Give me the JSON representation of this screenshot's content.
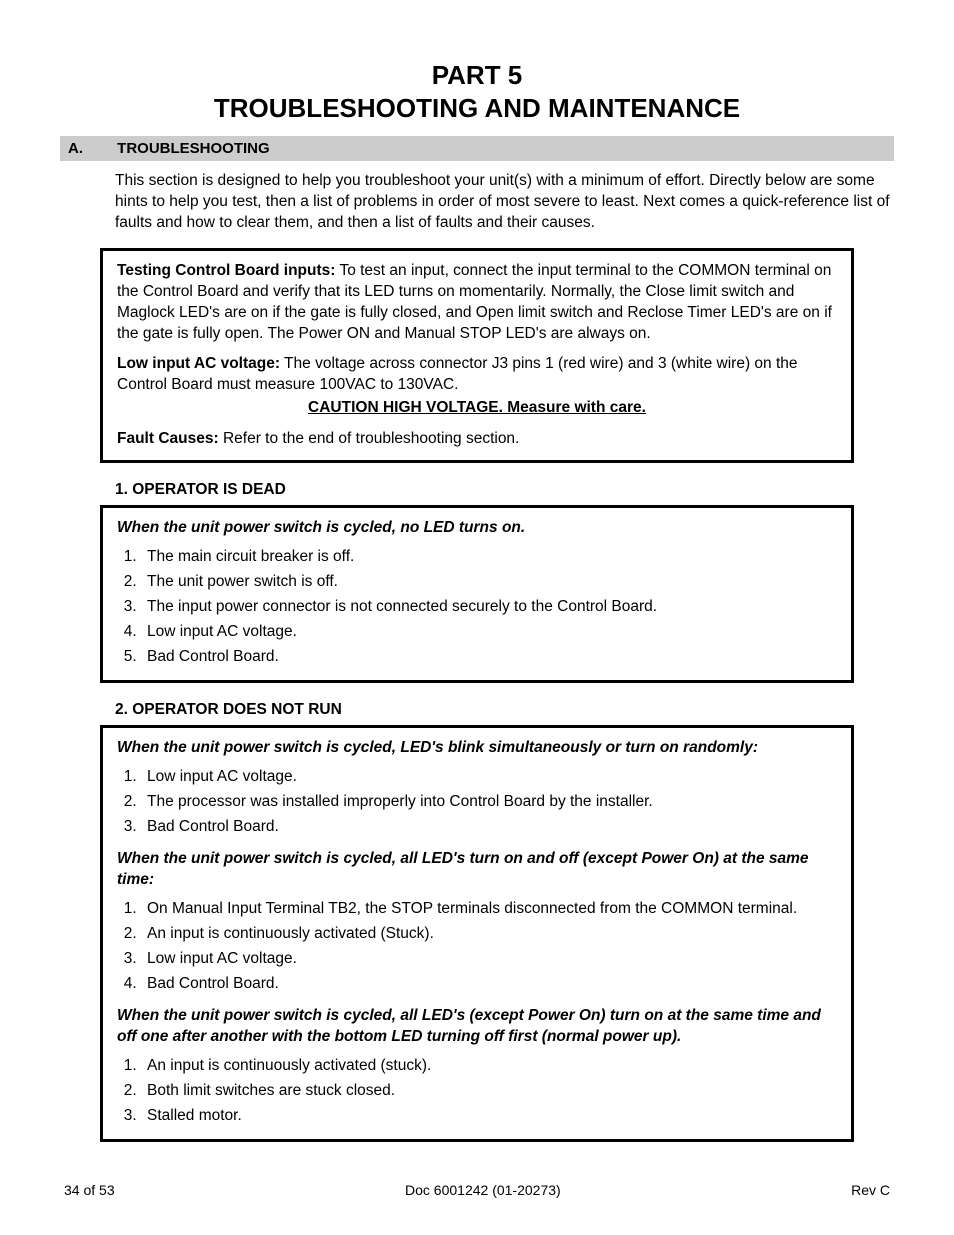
{
  "title_line1": "PART 5",
  "title_line2": "TROUBLESHOOTING AND MAINTENANCE",
  "section_letter": "A.",
  "section_title": "TROUBLESHOOTING",
  "intro": "This section is designed to help you troubleshoot your unit(s) with a minimum of effort.  Directly below are some hints to help you test, then a list of problems in order of most severe to least.  Next comes a quick-reference list of faults and how to clear them, and then a list of faults and their causes.",
  "hints": {
    "testing_label": "Testing Control Board inputs:",
    "testing_text": "  To test an input, connect the input terminal to the COMMON terminal on the Control Board and verify that its LED turns on momentarily.  Normally, the Close limit switch and Maglock LED's are on if the gate is fully closed, and Open limit switch and Reclose Timer LED's are on if the gate is fully open.  The Power ON and Manual STOP LED's are always on.",
    "lowac_label": "Low input AC voltage:",
    "lowac_text": "  The voltage across connector J3 pins 1 (red wire) and 3 (white wire) on the Control Board must measure 100VAC to 130VAC.",
    "caution": "CAUTION HIGH VOLTAGE.  Measure with care.",
    "fault_label": "Fault Causes:",
    "fault_text": "  Refer to the end of troubleshooting section."
  },
  "problems": [
    {
      "heading": "1.  OPERATOR IS DEAD",
      "groups": [
        {
          "symptom": "When the unit power switch is cycled, no LED turns on.",
          "causes": [
            "The main circuit breaker is off.",
            "The unit power switch is off.",
            "The input power connector is not connected securely to the Control Board.",
            "Low input AC voltage.",
            "Bad Control Board."
          ]
        }
      ]
    },
    {
      "heading": "2.  OPERATOR DOES NOT RUN",
      "groups": [
        {
          "symptom": "When the unit power switch is cycled,  LED's blink simultaneously or turn on randomly:",
          "causes": [
            "Low input AC voltage.",
            "The processor was installed improperly into Control Board by the installer.",
            "Bad Control Board."
          ]
        },
        {
          "symptom": "When the unit power switch is cycled, all LED's turn on and off  (except Power On) at the same time:",
          "causes": [
            "On Manual Input Terminal TB2, the STOP terminals disconnected from the COMMON terminal.",
            "An input is continuously activated (Stuck).",
            "Low input AC voltage.",
            "Bad Control Board."
          ]
        },
        {
          "symptom": "When the unit power switch is cycled, all LED's (except Power On) turn on at the same time and off one after another with the bottom LED turning off first (normal power up).",
          "causes": [
            "An input is continuously activated (stuck).",
            "Both limit switches are stuck closed.",
            "Stalled motor."
          ]
        }
      ]
    }
  ],
  "footer": {
    "left": "34 of 53",
    "center": "Doc 6001242 (01-20273)",
    "right": "Rev C"
  }
}
